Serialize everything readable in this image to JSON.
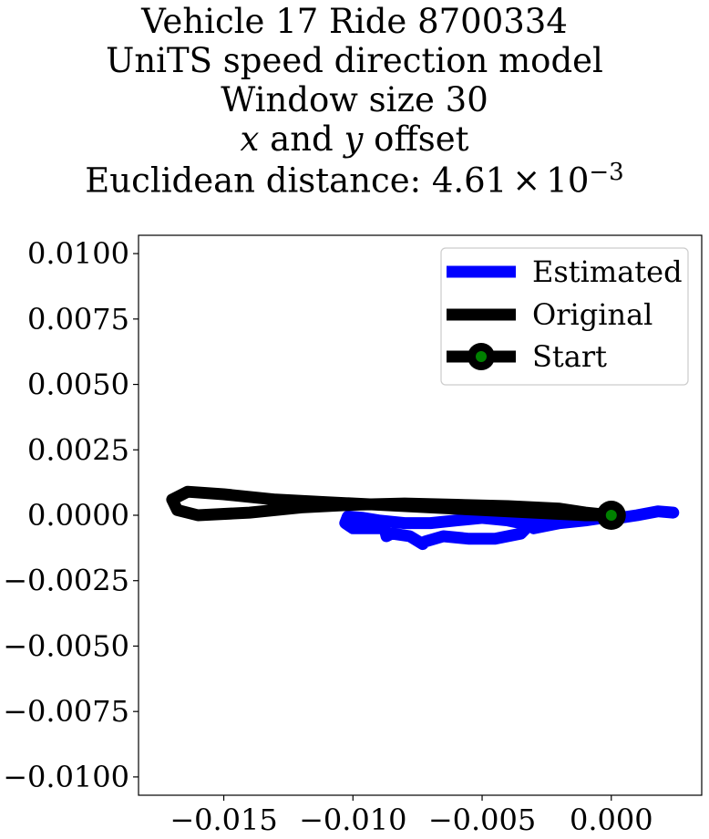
{
  "chart_data": {
    "type": "line",
    "title_lines": [
      "Vehicle 17 Ride 8700334",
      "UniTS speed direction model",
      "Window size 30"
    ],
    "title_offset": {
      "x": "x",
      "and": " and ",
      "y": "y",
      "rest": " offset"
    },
    "title_distance": {
      "prefix": "Euclidean distance: ",
      "mantissa": "4.61",
      "times": "×",
      "base": "10",
      "exponent": "−3"
    },
    "xlim": [
      -0.0183,
      0.0035
    ],
    "ylim": [
      -0.0107,
      0.0107
    ],
    "x_ticks": [
      {
        "value": -0.015,
        "label": "−0.015"
      },
      {
        "value": -0.01,
        "label": "−0.010"
      },
      {
        "value": -0.005,
        "label": "−0.005"
      },
      {
        "value": 0.0,
        "label": "0.000"
      }
    ],
    "y_ticks": [
      {
        "value": 0.01,
        "label": "0.0100"
      },
      {
        "value": 0.0075,
        "label": "0.0075"
      },
      {
        "value": 0.005,
        "label": "0.0050"
      },
      {
        "value": 0.0025,
        "label": "0.0025"
      },
      {
        "value": 0.0,
        "label": "0.0000"
      },
      {
        "value": -0.0025,
        "label": "−0.0025"
      },
      {
        "value": -0.005,
        "label": "−0.0050"
      },
      {
        "value": -0.0075,
        "label": "−0.0075"
      },
      {
        "value": -0.01,
        "label": "−0.0100"
      }
    ],
    "grid": false,
    "legend": {
      "placement": "upper-right",
      "entries": [
        {
          "label": "Estimated",
          "color": "#0000ff"
        },
        {
          "label": "Original",
          "color": "#000000"
        },
        {
          "label": "Start",
          "color": "#000000",
          "marker_color": "#008000"
        }
      ]
    },
    "series": [
      {
        "name": "Estimated",
        "color": "#0000ff",
        "points": [
          [
            0.0024,
            0.0001
          ],
          [
            0.0018,
            0.00015
          ],
          [
            0.001,
            0.0
          ],
          [
            0.0003,
            -0.0001
          ],
          [
            0.0,
            -5e-05
          ],
          [
            -0.001,
            -0.0002
          ],
          [
            -0.002,
            -0.0003
          ],
          [
            -0.003,
            -0.0005
          ],
          [
            -0.0034,
            -0.0002
          ],
          [
            -0.0033,
            -0.0005
          ],
          [
            -0.0035,
            -0.0007
          ],
          [
            -0.0045,
            -0.0009
          ],
          [
            -0.0055,
            -0.0009
          ],
          [
            -0.0065,
            -0.0008
          ],
          [
            -0.0072,
            -0.001
          ],
          [
            -0.0073,
            -0.0011
          ],
          [
            -0.0078,
            -0.0008
          ],
          [
            -0.0085,
            -0.0007
          ],
          [
            -0.0087,
            -0.0008
          ],
          [
            -0.0088,
            -0.0004
          ],
          [
            -0.009,
            -0.0005
          ],
          [
            -0.01,
            -0.0005
          ],
          [
            -0.0103,
            -0.0003
          ],
          [
            -0.0102,
            -5e-05
          ],
          [
            -0.0096,
            -0.0001
          ],
          [
            -0.009,
            -0.0002
          ],
          [
            -0.008,
            -0.0003
          ],
          [
            -0.007,
            -0.0003
          ],
          [
            -0.006,
            -0.0002
          ],
          [
            -0.005,
            -0.0001
          ],
          [
            -0.004,
            -0.0002
          ],
          [
            -0.0035,
            -0.0003
          ],
          [
            -0.0028,
            -0.0003
          ],
          [
            -0.002,
            -0.0001
          ],
          [
            -0.001,
            -5e-05
          ],
          [
            0.0,
            0.0
          ]
        ]
      },
      {
        "name": "Original",
        "color": "#000000",
        "points": [
          [
            0.0,
            0.0
          ],
          [
            -0.001,
            0.0001
          ],
          [
            -0.002,
            0.00025
          ],
          [
            -0.004,
            0.00035
          ],
          [
            -0.006,
            0.0004
          ],
          [
            -0.008,
            0.00045
          ],
          [
            -0.01,
            0.0004
          ],
          [
            -0.012,
            0.0003
          ],
          [
            -0.014,
            0.0001
          ],
          [
            -0.016,
            0.0
          ],
          [
            -0.0168,
            0.0002
          ],
          [
            -0.017,
            0.0006
          ],
          [
            -0.0164,
            0.0009
          ],
          [
            -0.015,
            0.0008
          ],
          [
            -0.013,
            0.0006
          ],
          [
            -0.011,
            0.0005
          ],
          [
            -0.009,
            0.0004
          ],
          [
            -0.007,
            0.0003
          ],
          [
            -0.005,
            0.0002
          ],
          [
            -0.003,
            0.0001
          ],
          [
            -0.001,
            0.0
          ],
          [
            0.0,
            0.0
          ]
        ]
      }
    ],
    "start_point": {
      "name": "Start",
      "x": 0.0,
      "y": 0.0,
      "marker_color": "#008000"
    }
  }
}
